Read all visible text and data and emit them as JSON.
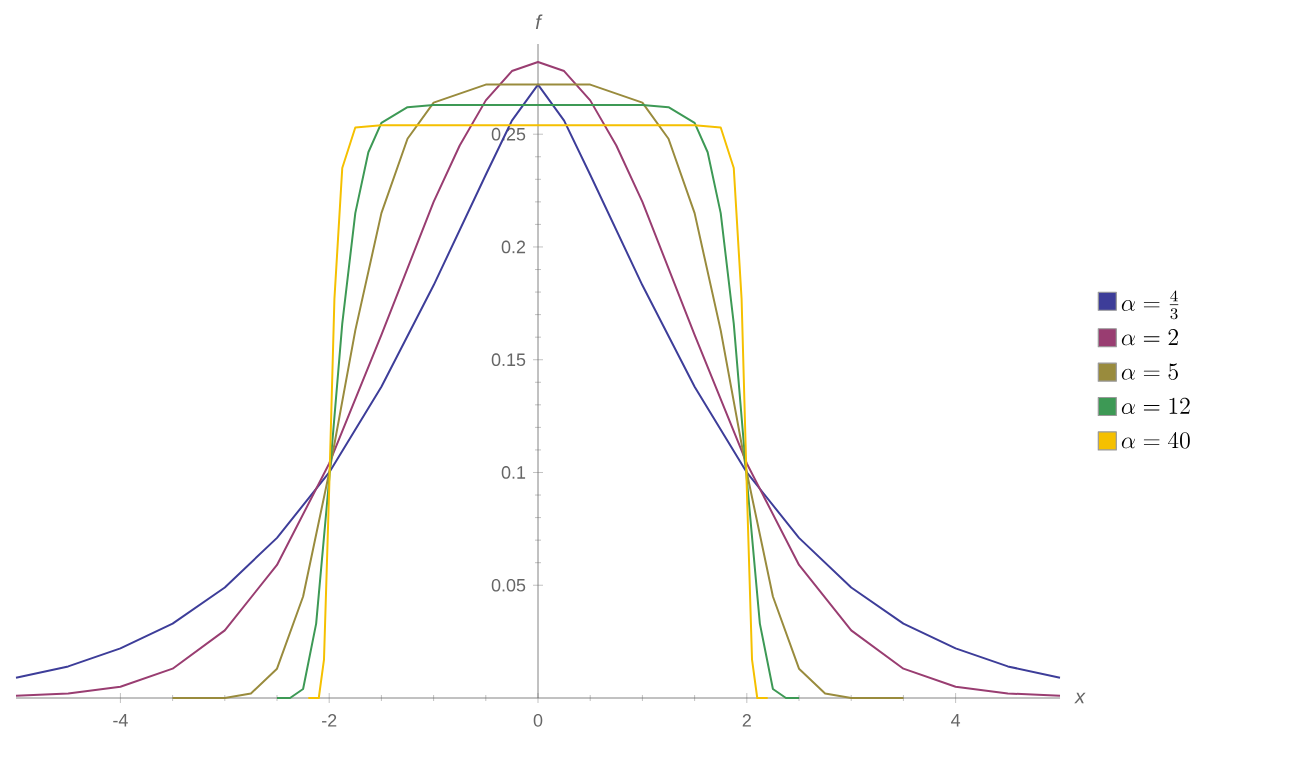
{
  "chart_data": {
    "type": "line",
    "xlabel": "x",
    "ylabel": "f",
    "xlim": [
      -5,
      5
    ],
    "ylim": [
      0,
      0.29
    ],
    "xticks": [
      -4,
      -2,
      0,
      2,
      4
    ],
    "yticks": [
      0.05,
      0.1,
      0.15,
      0.2,
      0.25
    ],
    "legend": "right",
    "grid": false,
    "marker": "none",
    "line_style": "solid",
    "series": [
      {
        "name": "\\alpha = \\frac{4}{3}",
        "color": "#3d3d99",
        "x": [
          -5,
          -4.5,
          -4,
          -3.5,
          -3,
          -2.5,
          -2,
          -1.5,
          -1,
          -0.5,
          -0.25,
          0,
          0.25,
          0.5,
          1,
          1.5,
          2,
          2.5,
          3,
          3.5,
          4,
          4.5,
          5
        ],
        "values": [
          0.009,
          0.014,
          0.022,
          0.033,
          0.049,
          0.071,
          0.1,
          0.138,
          0.183,
          0.232,
          0.256,
          0.272,
          0.256,
          0.232,
          0.183,
          0.138,
          0.1,
          0.071,
          0.049,
          0.033,
          0.022,
          0.014,
          0.009
        ]
      },
      {
        "name": "\\alpha = 2",
        "color": "#993d71",
        "x": [
          -5,
          -4.5,
          -4,
          -3.5,
          -3,
          -2.5,
          -2,
          -1.5,
          -1,
          -0.75,
          -0.5,
          -0.25,
          0,
          0.25,
          0.5,
          0.75,
          1,
          1.5,
          2,
          2.5,
          3,
          3.5,
          4,
          4.5,
          5
        ],
        "values": [
          0.001,
          0.002,
          0.005,
          0.013,
          0.03,
          0.059,
          0.104,
          0.161,
          0.22,
          0.245,
          0.265,
          0.278,
          0.282,
          0.278,
          0.265,
          0.245,
          0.22,
          0.161,
          0.104,
          0.059,
          0.03,
          0.013,
          0.005,
          0.002,
          0.001
        ]
      },
      {
        "name": "\\alpha = 5",
        "color": "#998b3d",
        "x": [
          -3.5,
          -3,
          -2.75,
          -2.5,
          -2.25,
          -2,
          -1.75,
          -1.5,
          -1.25,
          -1,
          -0.5,
          0,
          0.5,
          1,
          1.25,
          1.5,
          1.75,
          2,
          2.25,
          2.5,
          2.75,
          3,
          3.5
        ],
        "values": [
          0,
          0,
          0.002,
          0.013,
          0.045,
          0.1,
          0.163,
          0.215,
          0.248,
          0.264,
          0.272,
          0.272,
          0.272,
          0.264,
          0.248,
          0.215,
          0.163,
          0.1,
          0.045,
          0.013,
          0.002,
          0,
          0
        ]
      },
      {
        "name": "\\alpha = 12",
        "color": "#3d9955",
        "x": [
          -2.5,
          -2.375,
          -2.25,
          -2.125,
          -2,
          -1.875,
          -1.75,
          -1.625,
          -1.5,
          -1.25,
          -1,
          0,
          1,
          1.25,
          1.5,
          1.625,
          1.75,
          1.875,
          2,
          2.125,
          2.25,
          2.375,
          2.5
        ],
        "values": [
          0,
          0,
          0.004,
          0.033,
          0.097,
          0.166,
          0.215,
          0.242,
          0.255,
          0.262,
          0.263,
          0.263,
          0.263,
          0.262,
          0.255,
          0.242,
          0.215,
          0.166,
          0.097,
          0.033,
          0.004,
          0,
          0
        ]
      },
      {
        "name": "\\alpha = 40",
        "color": "#f5c000",
        "x": [
          -2.2,
          -2.1,
          -2.05,
          -2,
          -1.95,
          -1.875,
          -1.75,
          -1.5,
          0,
          1.5,
          1.75,
          1.875,
          1.95,
          2,
          2.05,
          2.1,
          2.2
        ],
        "values": [
          0,
          0,
          0.017,
          0.093,
          0.177,
          0.235,
          0.253,
          0.254,
          0.254,
          0.254,
          0.253,
          0.235,
          0.177,
          0.093,
          0.017,
          0,
          0
        ]
      }
    ]
  }
}
